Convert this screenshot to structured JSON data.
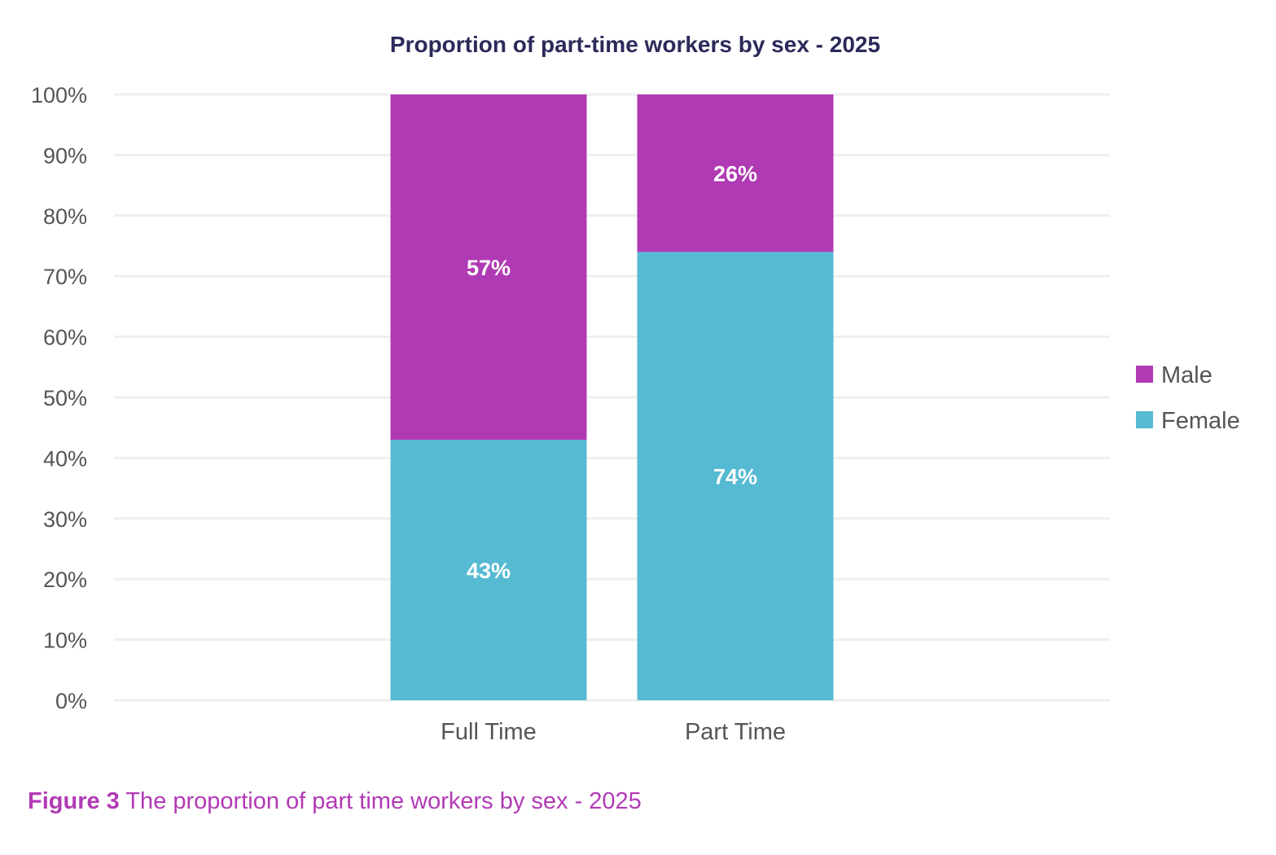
{
  "chart_data": {
    "type": "bar",
    "stacked": true,
    "title": "Proportion of part-time workers by sex - 2025",
    "xlabel": "",
    "ylabel": "",
    "ylim": [
      0,
      100
    ],
    "yticks": [
      "0%",
      "10%",
      "20%",
      "30%",
      "40%",
      "50%",
      "60%",
      "70%",
      "80%",
      "90%",
      "100%"
    ],
    "grid": true,
    "legend_position": "right",
    "categories": [
      "Full Time",
      "Part Time"
    ],
    "series": [
      {
        "name": "Female",
        "values": [
          43,
          74
        ],
        "labels": [
          "43%",
          "74%"
        ],
        "color": "#57bad3"
      },
      {
        "name": "Male",
        "values": [
          57,
          26
        ],
        "labels": [
          "57%",
          "26%"
        ],
        "color": "#b03ab4"
      }
    ],
    "legend": [
      "Male",
      "Female"
    ]
  },
  "caption": {
    "label": "Figure 3",
    "text": " The proportion of part time workers by sex - 2025"
  },
  "colors": {
    "title": "#2b2a5a",
    "axis_text": "#555555",
    "grid": "#efefef",
    "caption": "#b23ab5"
  }
}
